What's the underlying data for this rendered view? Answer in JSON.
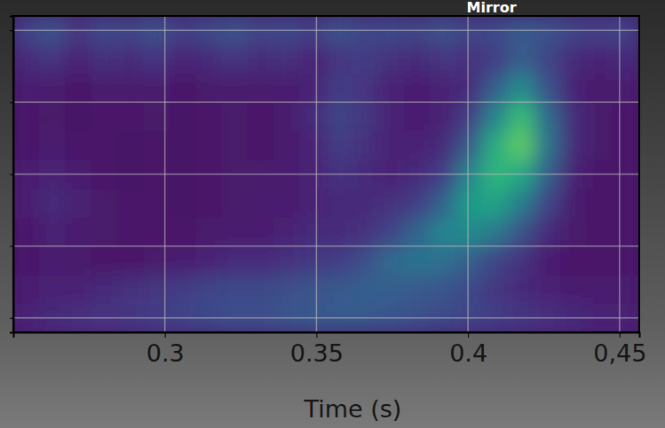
{
  "chart_data": {
    "type": "heatmap",
    "title": "Mirror",
    "x_label": "Time (s)",
    "xlim": [
      0.25,
      0.4565
    ],
    "xticks": [
      0.3,
      0.35,
      0.4,
      {
        "value": 0.45,
        "label": "0,45"
      }
    ],
    "ylim": [
      0,
      4.4
    ],
    "yticks": [
      0.2,
      1.2,
      2.2,
      3.2,
      4.2
    ],
    "tick_labels": "x",
    "grid": true,
    "color_range": [
      0,
      1
    ],
    "x": [
      0.2543,
      0.2629,
      0.2715,
      0.2801,
      0.2887,
      0.2973,
      0.3059,
      0.3145,
      0.3231,
      0.3317,
      0.3403,
      0.3489,
      0.3575,
      0.3661,
      0.3747,
      0.3833,
      0.3919,
      0.4005,
      0.4091,
      0.4177,
      0.4263,
      0.4349,
      0.4435,
      0.4521
    ],
    "y": [
      0.2,
      0.6,
      1.0,
      1.4,
      1.8,
      2.2,
      2.6,
      3.0,
      3.4,
      3.8,
      4.2
    ],
    "values": [
      [
        0.1,
        0.12,
        0.14,
        0.15,
        0.16,
        0.18,
        0.2,
        0.22,
        0.24,
        0.24,
        0.26,
        0.28,
        0.28,
        0.28,
        0.26,
        0.24,
        0.22,
        0.2,
        0.18,
        0.16,
        0.14,
        0.12,
        0.1,
        0.1
      ],
      [
        0.08,
        0.1,
        0.1,
        0.12,
        0.14,
        0.16,
        0.18,
        0.2,
        0.22,
        0.22,
        0.24,
        0.26,
        0.28,
        0.3,
        0.3,
        0.28,
        0.26,
        0.22,
        0.16,
        0.12,
        0.1,
        0.08,
        0.08,
        0.08
      ],
      [
        0.06,
        0.08,
        0.07,
        0.06,
        0.06,
        0.07,
        0.08,
        0.1,
        0.12,
        0.12,
        0.14,
        0.16,
        0.18,
        0.24,
        0.34,
        0.38,
        0.36,
        0.3,
        0.2,
        0.14,
        0.08,
        0.06,
        0.06,
        0.06
      ],
      [
        0.06,
        0.1,
        0.08,
        0.07,
        0.06,
        0.06,
        0.06,
        0.07,
        0.08,
        0.08,
        0.1,
        0.12,
        0.12,
        0.14,
        0.2,
        0.32,
        0.45,
        0.48,
        0.4,
        0.25,
        0.12,
        0.07,
        0.06,
        0.06
      ],
      [
        0.08,
        0.12,
        0.1,
        0.07,
        0.06,
        0.06,
        0.05,
        0.06,
        0.07,
        0.08,
        0.08,
        0.1,
        0.12,
        0.12,
        0.14,
        0.18,
        0.32,
        0.55,
        0.58,
        0.42,
        0.2,
        0.08,
        0.06,
        0.06
      ],
      [
        0.08,
        0.1,
        0.08,
        0.06,
        0.05,
        0.06,
        0.05,
        0.06,
        0.07,
        0.07,
        0.08,
        0.1,
        0.14,
        0.12,
        0.1,
        0.12,
        0.18,
        0.45,
        0.66,
        0.6,
        0.3,
        0.1,
        0.06,
        0.06
      ],
      [
        0.06,
        0.08,
        0.06,
        0.06,
        0.05,
        0.06,
        0.05,
        0.06,
        0.07,
        0.06,
        0.08,
        0.1,
        0.18,
        0.14,
        0.1,
        0.1,
        0.12,
        0.28,
        0.62,
        0.75,
        0.38,
        0.12,
        0.07,
        0.06
      ],
      [
        0.06,
        0.07,
        0.05,
        0.06,
        0.06,
        0.07,
        0.05,
        0.06,
        0.07,
        0.06,
        0.08,
        0.12,
        0.2,
        0.16,
        0.1,
        0.08,
        0.1,
        0.18,
        0.45,
        0.68,
        0.35,
        0.12,
        0.07,
        0.06
      ],
      [
        0.08,
        0.08,
        0.06,
        0.08,
        0.07,
        0.08,
        0.06,
        0.07,
        0.08,
        0.07,
        0.08,
        0.1,
        0.18,
        0.15,
        0.1,
        0.08,
        0.1,
        0.12,
        0.3,
        0.48,
        0.25,
        0.1,
        0.07,
        0.08
      ],
      [
        0.12,
        0.15,
        0.1,
        0.14,
        0.12,
        0.15,
        0.1,
        0.12,
        0.15,
        0.12,
        0.14,
        0.1,
        0.15,
        0.18,
        0.14,
        0.12,
        0.15,
        0.14,
        0.18,
        0.3,
        0.2,
        0.12,
        0.1,
        0.12
      ],
      [
        0.2,
        0.25,
        0.15,
        0.22,
        0.2,
        0.25,
        0.18,
        0.22,
        0.25,
        0.2,
        0.22,
        0.18,
        0.25,
        0.2,
        0.22,
        0.2,
        0.25,
        0.2,
        0.22,
        0.28,
        0.25,
        0.2,
        0.18,
        0.2
      ]
    ]
  }
}
